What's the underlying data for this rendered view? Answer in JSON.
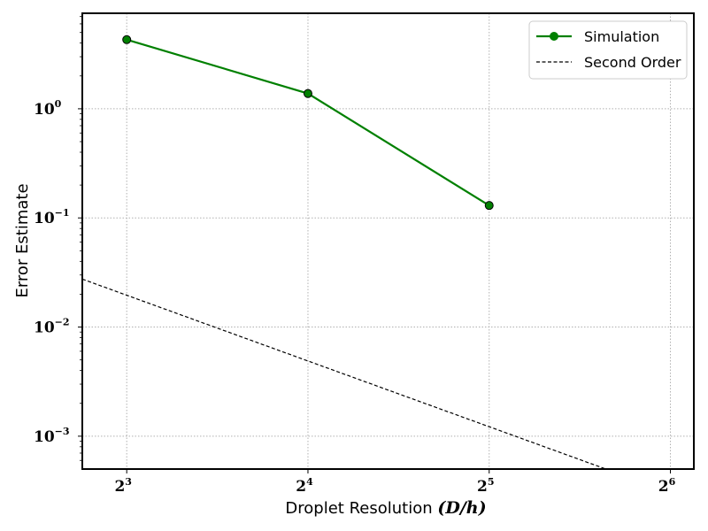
{
  "chart_data": {
    "type": "line",
    "x_scale": "log2",
    "y_scale": "log10",
    "xlim": [
      6.75,
      70
    ],
    "ylim": [
      0.0005,
      7.5
    ],
    "x_ticks": [
      {
        "value": 8,
        "base": "2",
        "exp": "3"
      },
      {
        "value": 16,
        "base": "2",
        "exp": "4"
      },
      {
        "value": 32,
        "base": "2",
        "exp": "5"
      },
      {
        "value": 64,
        "base": "2",
        "exp": "6"
      }
    ],
    "y_ticks": [
      {
        "value": 1,
        "base": "10",
        "exp": "0"
      },
      {
        "value": 0.1,
        "base": "10",
        "exp": "−1"
      },
      {
        "value": 0.01,
        "base": "10",
        "exp": "−2"
      },
      {
        "value": 0.001,
        "base": "10",
        "exp": "−3"
      }
    ],
    "xlabel": "Droplet Resolution ",
    "xlabel_math": "(D/h)",
    "ylabel": "Error Estimate",
    "grid": true,
    "legend_position": "upper right",
    "series": [
      {
        "name": "Simulation",
        "style": "solid",
        "marker": "circle",
        "color": "#008000",
        "x": [
          8,
          16,
          32
        ],
        "y": [
          4.3,
          1.38,
          0.13
        ]
      },
      {
        "name": "Second Order",
        "style": "dashed",
        "marker": "none",
        "color": "#000000",
        "x": [
          6.75,
          50
        ],
        "y": [
          0.0275,
          0.0005
        ]
      }
    ]
  }
}
